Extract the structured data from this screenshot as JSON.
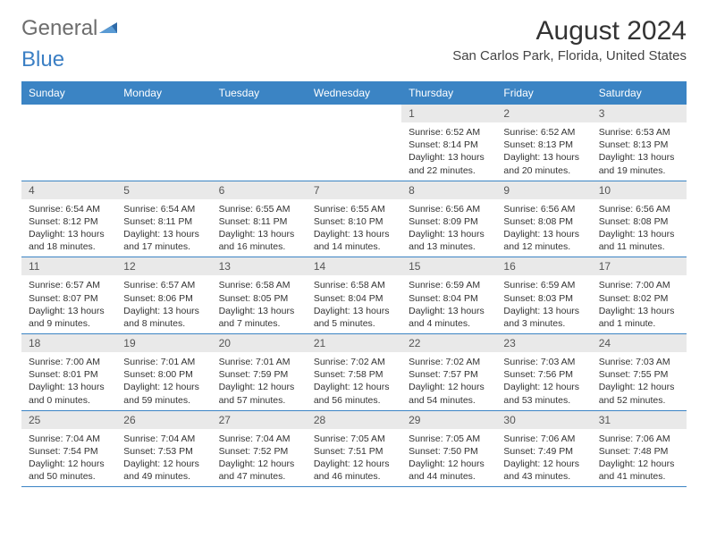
{
  "logo": {
    "part1": "General",
    "part2": "Blue"
  },
  "header": {
    "title": "August 2024",
    "location": "San Carlos Park, Florida, United States"
  },
  "dayNames": [
    "Sunday",
    "Monday",
    "Tuesday",
    "Wednesday",
    "Thursday",
    "Friday",
    "Saturday"
  ],
  "colors": {
    "header_bg": "#3b84c4",
    "header_text": "#ffffff",
    "daynum_bg": "#e9e9e9",
    "text": "#333333",
    "row_border": "#3b84c4"
  },
  "typography": {
    "body_font": "Arial",
    "title_size_pt": 22,
    "cell_font_size_pt": 8
  },
  "grid": {
    "weeks": [
      [
        {
          "empty": true
        },
        {
          "empty": true
        },
        {
          "empty": true
        },
        {
          "empty": true
        },
        {
          "d": "1",
          "sunrise": "6:52 AM",
          "sunset": "8:14 PM",
          "daylight": "13 hours and 22 minutes."
        },
        {
          "d": "2",
          "sunrise": "6:52 AM",
          "sunset": "8:13 PM",
          "daylight": "13 hours and 20 minutes."
        },
        {
          "d": "3",
          "sunrise": "6:53 AM",
          "sunset": "8:13 PM",
          "daylight": "13 hours and 19 minutes."
        }
      ],
      [
        {
          "d": "4",
          "sunrise": "6:54 AM",
          "sunset": "8:12 PM",
          "daylight": "13 hours and 18 minutes."
        },
        {
          "d": "5",
          "sunrise": "6:54 AM",
          "sunset": "8:11 PM",
          "daylight": "13 hours and 17 minutes."
        },
        {
          "d": "6",
          "sunrise": "6:55 AM",
          "sunset": "8:11 PM",
          "daylight": "13 hours and 16 minutes."
        },
        {
          "d": "7",
          "sunrise": "6:55 AM",
          "sunset": "8:10 PM",
          "daylight": "13 hours and 14 minutes."
        },
        {
          "d": "8",
          "sunrise": "6:56 AM",
          "sunset": "8:09 PM",
          "daylight": "13 hours and 13 minutes."
        },
        {
          "d": "9",
          "sunrise": "6:56 AM",
          "sunset": "8:08 PM",
          "daylight": "13 hours and 12 minutes."
        },
        {
          "d": "10",
          "sunrise": "6:56 AM",
          "sunset": "8:08 PM",
          "daylight": "13 hours and 11 minutes."
        }
      ],
      [
        {
          "d": "11",
          "sunrise": "6:57 AM",
          "sunset": "8:07 PM",
          "daylight": "13 hours and 9 minutes."
        },
        {
          "d": "12",
          "sunrise": "6:57 AM",
          "sunset": "8:06 PM",
          "daylight": "13 hours and 8 minutes."
        },
        {
          "d": "13",
          "sunrise": "6:58 AM",
          "sunset": "8:05 PM",
          "daylight": "13 hours and 7 minutes."
        },
        {
          "d": "14",
          "sunrise": "6:58 AM",
          "sunset": "8:04 PM",
          "daylight": "13 hours and 5 minutes."
        },
        {
          "d": "15",
          "sunrise": "6:59 AM",
          "sunset": "8:04 PM",
          "daylight": "13 hours and 4 minutes."
        },
        {
          "d": "16",
          "sunrise": "6:59 AM",
          "sunset": "8:03 PM",
          "daylight": "13 hours and 3 minutes."
        },
        {
          "d": "17",
          "sunrise": "7:00 AM",
          "sunset": "8:02 PM",
          "daylight": "13 hours and 1 minute."
        }
      ],
      [
        {
          "d": "18",
          "sunrise": "7:00 AM",
          "sunset": "8:01 PM",
          "daylight": "13 hours and 0 minutes."
        },
        {
          "d": "19",
          "sunrise": "7:01 AM",
          "sunset": "8:00 PM",
          "daylight": "12 hours and 59 minutes."
        },
        {
          "d": "20",
          "sunrise": "7:01 AM",
          "sunset": "7:59 PM",
          "daylight": "12 hours and 57 minutes."
        },
        {
          "d": "21",
          "sunrise": "7:02 AM",
          "sunset": "7:58 PM",
          "daylight": "12 hours and 56 minutes."
        },
        {
          "d": "22",
          "sunrise": "7:02 AM",
          "sunset": "7:57 PM",
          "daylight": "12 hours and 54 minutes."
        },
        {
          "d": "23",
          "sunrise": "7:03 AM",
          "sunset": "7:56 PM",
          "daylight": "12 hours and 53 minutes."
        },
        {
          "d": "24",
          "sunrise": "7:03 AM",
          "sunset": "7:55 PM",
          "daylight": "12 hours and 52 minutes."
        }
      ],
      [
        {
          "d": "25",
          "sunrise": "7:04 AM",
          "sunset": "7:54 PM",
          "daylight": "12 hours and 50 minutes."
        },
        {
          "d": "26",
          "sunrise": "7:04 AM",
          "sunset": "7:53 PM",
          "daylight": "12 hours and 49 minutes."
        },
        {
          "d": "27",
          "sunrise": "7:04 AM",
          "sunset": "7:52 PM",
          "daylight": "12 hours and 47 minutes."
        },
        {
          "d": "28",
          "sunrise": "7:05 AM",
          "sunset": "7:51 PM",
          "daylight": "12 hours and 46 minutes."
        },
        {
          "d": "29",
          "sunrise": "7:05 AM",
          "sunset": "7:50 PM",
          "daylight": "12 hours and 44 minutes."
        },
        {
          "d": "30",
          "sunrise": "7:06 AM",
          "sunset": "7:49 PM",
          "daylight": "12 hours and 43 minutes."
        },
        {
          "d": "31",
          "sunrise": "7:06 AM",
          "sunset": "7:48 PM",
          "daylight": "12 hours and 41 minutes."
        }
      ]
    ]
  },
  "labels": {
    "sunrise": "Sunrise:",
    "sunset": "Sunset:",
    "daylight": "Daylight:"
  }
}
